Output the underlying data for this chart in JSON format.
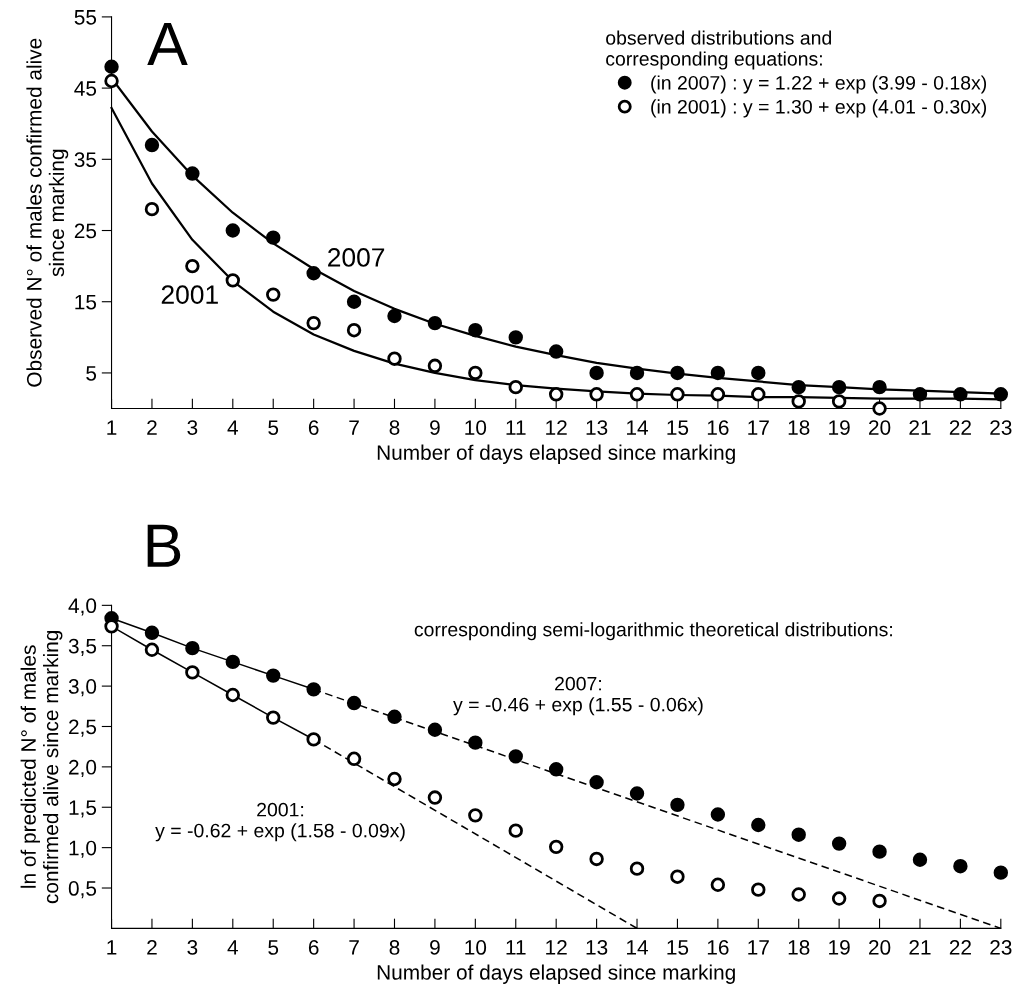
{
  "chart_data": [
    {
      "type": "scatter",
      "title": "A",
      "xlabel": "Number of days elapsed since marking",
      "ylabel": "Observed N° of males confirmed alive\nsince marking",
      "legend_title": "observed distributions and\ncorresponding equations:",
      "legend": "top right",
      "grid": false,
      "x": [
        1,
        2,
        3,
        4,
        5,
        6,
        7,
        8,
        9,
        10,
        11,
        12,
        13,
        14,
        15,
        16,
        17,
        18,
        19,
        20,
        21,
        22,
        23
      ],
      "xlim": [
        1,
        23
      ],
      "xticks": [
        1,
        2,
        3,
        4,
        5,
        6,
        7,
        8,
        9,
        10,
        11,
        12,
        13,
        14,
        15,
        16,
        17,
        18,
        19,
        20,
        21,
        22,
        23
      ],
      "ylim": [
        0,
        55
      ],
      "yticks": [
        5,
        15,
        25,
        35,
        45,
        55
      ],
      "series": [
        {
          "name": "(in 2007) : y = 1.22 + exp (3.99 - 0.18x)",
          "color": "#000000",
          "marker": "circle",
          "values": [
            48,
            37,
            33,
            25,
            24,
            19,
            15,
            13,
            12,
            11,
            10,
            8,
            5,
            5,
            5,
            5,
            5,
            3,
            3,
            3,
            2,
            2,
            2
          ]
        },
        {
          "name": "(in 2001) : y = 1.30 + exp (4.01 - 0.30x)",
          "color": "#ffffff",
          "marker": "circle",
          "x": [
            1,
            2,
            3,
            4,
            5,
            6,
            7,
            8,
            9,
            10,
            11,
            12,
            13,
            14,
            15,
            16,
            17,
            18,
            19,
            20
          ],
          "values": [
            46,
            28,
            20,
            18,
            16,
            12,
            11,
            7,
            6,
            5,
            3,
            2,
            2,
            2,
            2,
            2,
            2,
            1,
            1,
            0
          ]
        },
        {
          "type": "line",
          "color": "#000000",
          "line_style": "solid",
          "values": [
            46.4,
            38.9,
            32.7,
            27.5,
            23.2,
            19.6,
            16.5,
            14.0,
            11.9,
            10.2,
            8.7,
            7.5,
            6.4,
            5.6,
            4.9,
            4.3,
            3.8,
            3.3,
            3.0,
            2.7,
            2.5,
            2.3,
            2.1
          ]
        },
        {
          "type": "line",
          "color": "#000000",
          "line_style": "solid",
          "values": [
            42.2,
            31.6,
            23.7,
            17.9,
            13.6,
            10.4,
            8.1,
            6.3,
            5.0,
            4.0,
            3.3,
            2.8,
            2.4,
            2.1,
            1.9,
            1.8,
            1.6,
            1.6,
            1.5,
            1.4,
            1.4,
            1.4,
            1.3
          ]
        }
      ],
      "annotations": [
        "2007",
        "2001"
      ]
    },
    {
      "type": "scatter",
      "title": "B",
      "xlabel": "Number of days elapsed since marking",
      "ylabel": "ln of predicted N° of males\nconfirmed alive since marking",
      "grid": false,
      "x": [
        1,
        2,
        3,
        4,
        5,
        6,
        7,
        8,
        9,
        10,
        11,
        12,
        13,
        14,
        15,
        16,
        17,
        18,
        19,
        20,
        21,
        22,
        23
      ],
      "xlim": [
        1,
        23
      ],
      "xticks": [
        1,
        2,
        3,
        4,
        5,
        6,
        7,
        8,
        9,
        10,
        11,
        12,
        13,
        14,
        15,
        16,
        17,
        18,
        19,
        20,
        21,
        22,
        23
      ],
      "ylim": [
        0,
        4.0
      ],
      "yticks": [
        {
          "value": 0.5,
          "label": "0,5"
        },
        {
          "value": 1.0,
          "label": "1,0"
        },
        {
          "value": 1.5,
          "label": "1,5"
        },
        {
          "value": 2.0,
          "label": "2,0"
        },
        {
          "value": 2.5,
          "label": "2,5"
        },
        {
          "value": 3.0,
          "label": "3,0"
        },
        {
          "value": 3.5,
          "label": "3,5"
        },
        {
          "value": 4.0,
          "label": "4,0"
        }
      ],
      "series": [
        {
          "type": "line",
          "color": "#000000",
          "line_style": "solid",
          "x": [
            1,
            2,
            3,
            4,
            5,
            6
          ],
          "values": [
            3.84,
            3.66,
            3.47,
            3.3,
            3.13,
            2.96
          ]
        },
        {
          "type": "line",
          "color": "#000000",
          "line_style": "solid",
          "x": [
            1,
            2,
            3,
            4,
            5,
            6
          ],
          "values": [
            3.74,
            3.45,
            3.17,
            2.89,
            2.61,
            2.34
          ]
        },
        {
          "type": "line",
          "color": "#000000",
          "line_style": "dashed",
          "x": [
            6,
            23
          ],
          "values": [
            2.96,
            0
          ]
        },
        {
          "type": "line",
          "color": "#000000",
          "line_style": "dashed",
          "x": [
            6,
            14
          ],
          "values": [
            2.34,
            0
          ]
        },
        {
          "color": "#000000",
          "marker": "circle",
          "values": [
            3.84,
            3.66,
            3.47,
            3.3,
            3.13,
            2.96,
            2.79,
            2.62,
            2.46,
            2.3,
            2.13,
            1.97,
            1.81,
            1.67,
            1.53,
            1.41,
            1.28,
            1.16,
            1.05,
            0.95,
            0.85,
            0.77,
            0.69
          ]
        },
        {
          "color": "#ffffff",
          "marker": "circle",
          "x": [
            1,
            2,
            3,
            4,
            5,
            6,
            7,
            8,
            9,
            10,
            11,
            12,
            13,
            14,
            15,
            16,
            17,
            18,
            19,
            20
          ],
          "values": [
            3.74,
            3.45,
            3.17,
            2.89,
            2.61,
            2.34,
            2.1,
            1.85,
            1.62,
            1.4,
            1.21,
            1.01,
            0.86,
            0.74,
            0.64,
            0.54,
            0.48,
            0.42,
            0.37,
            0.34
          ]
        }
      ],
      "annotations": [
        "corresponding semi-logarithmic theoretical distributions:",
        "2007:\ny = -0.46 + exp (1.55 - 0.06x)",
        "2001:\ny = -0.62 + exp (1.58 - 0.09x)"
      ]
    }
  ]
}
